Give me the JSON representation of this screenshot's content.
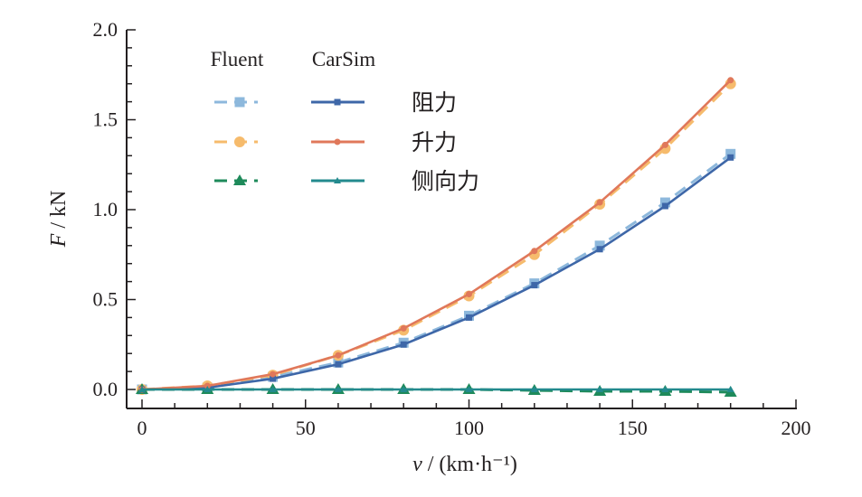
{
  "chart_data": {
    "type": "line",
    "title": "",
    "xlabel": "v / (km·h⁻¹)",
    "xlabel_var": "v",
    "xlabel_unit": " / (km·h⁻¹)",
    "ylabel": "F / kN",
    "ylabel_var": "F",
    "ylabel_unit": " / kN",
    "xlim": [
      0,
      200
    ],
    "ylim": [
      0,
      2.0
    ],
    "xticks": [
      0,
      50,
      100,
      150,
      200
    ],
    "xtick_labels": [
      "0",
      "50",
      "100",
      "150",
      "200"
    ],
    "yticks": [
      0,
      0.5,
      1.0,
      1.5,
      2.0
    ],
    "ytick_labels": [
      "0.0",
      "0.5",
      "1.0",
      "1.5",
      "2.0"
    ],
    "grid": false,
    "legend": {
      "placement": "top-left",
      "col_headers": [
        "Fluent",
        "CarSim"
      ],
      "rows": [
        "阻力",
        "升力",
        "侧向力"
      ]
    },
    "x": [
      0,
      20,
      40,
      60,
      80,
      100,
      120,
      140,
      160,
      180
    ],
    "series": [
      {
        "name": "阻力 Fluent",
        "source": "Fluent",
        "color": "#8db8dc",
        "dash": true,
        "marker": "square",
        "values": [
          0,
          0.01,
          0.07,
          0.15,
          0.26,
          0.41,
          0.59,
          0.8,
          1.04,
          1.31
        ]
      },
      {
        "name": "升力 Fluent",
        "source": "Fluent",
        "color": "#f6bb6c",
        "dash": true,
        "marker": "circle",
        "values": [
          0,
          0.02,
          0.08,
          0.19,
          0.33,
          0.52,
          0.75,
          1.03,
          1.34,
          1.7
        ]
      },
      {
        "name": "侧向力 Fluent",
        "source": "Fluent",
        "color": "#1e8a5a",
        "dash": true,
        "marker": "triangle",
        "values": [
          0,
          0,
          0,
          0,
          0,
          0,
          -0.005,
          -0.01,
          -0.01,
          -0.015
        ]
      },
      {
        "name": "阻力 CarSim",
        "source": "CarSim",
        "color": "#3e67a8",
        "dash": false,
        "marker": "small-square",
        "values": [
          0,
          0.01,
          0.06,
          0.14,
          0.25,
          0.4,
          0.58,
          0.78,
          1.02,
          1.29
        ]
      },
      {
        "name": "升力 CarSim",
        "source": "CarSim",
        "color": "#e0785a",
        "dash": false,
        "marker": "small-circle",
        "values": [
          0,
          0.02,
          0.085,
          0.19,
          0.34,
          0.53,
          0.77,
          1.04,
          1.36,
          1.72
        ]
      },
      {
        "name": "侧向力 CarSim",
        "source": "CarSim",
        "color": "#238a8e",
        "dash": false,
        "marker": "small-triangle",
        "values": [
          0,
          0,
          0,
          0,
          0,
          0,
          0,
          0,
          0,
          0
        ]
      }
    ]
  }
}
